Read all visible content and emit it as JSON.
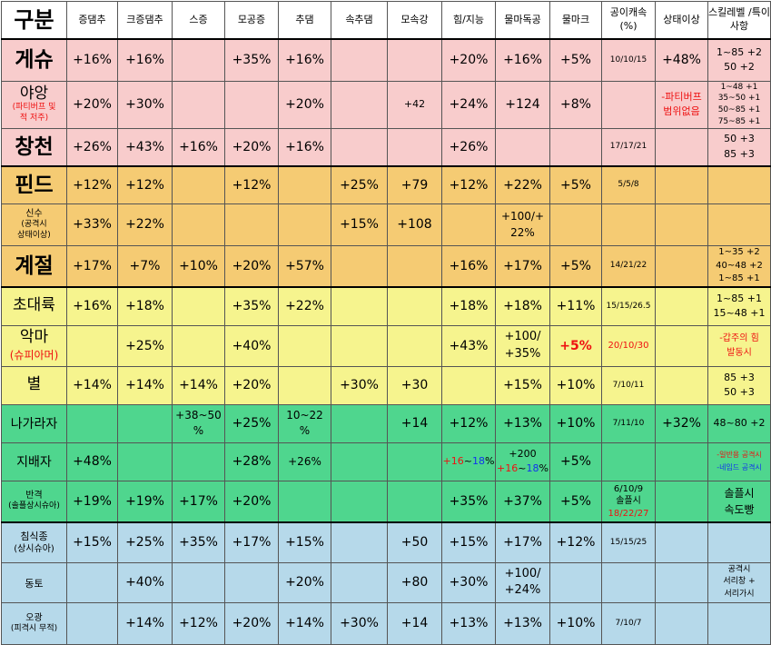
{
  "headers": [
    "구분",
    "증댐추",
    "크증댐추",
    "스증",
    "모공증",
    "추댐",
    "속추댐",
    "모속강",
    "힘/지능",
    "물마독공",
    "물마크",
    "공이캐속 (%)",
    "상태이상",
    "스킬레벨 /특이사항"
  ],
  "rows": {
    "geshu": {
      "name": "게슈",
      "c": [
        "+16%",
        "+16%",
        "",
        "+35%",
        "+16%",
        "",
        "",
        "+20%",
        "+16%",
        "+5%",
        "10/10/15",
        "+48%"
      ],
      "skill": [
        "1~85 +2",
        "50 +2"
      ]
    },
    "yayang": {
      "name": "야앙",
      "sub": [
        "(파티버프 및",
        "적 저주)"
      ],
      "c": [
        "+20%",
        "+30%",
        "",
        "",
        "+20%",
        "",
        "+42",
        "+24%",
        "+124",
        "+8%",
        "",
        ""
      ],
      "status": [
        "-파티버프",
        "범위없음"
      ],
      "skill": [
        "1~48 +1",
        "35~50 +1",
        "50~85 +1",
        "75~85 +1"
      ]
    },
    "changcheon": {
      "name": "창천",
      "c": [
        "+26%",
        "+43%",
        "+16%",
        "+20%",
        "+16%",
        "",
        "",
        "+26%",
        "",
        "",
        "17/17/21",
        ""
      ],
      "skill": [
        "50 +3",
        "85 +3"
      ]
    },
    "pind": {
      "name": "핀드",
      "c": [
        "+12%",
        "+12%",
        "",
        "+12%",
        "",
        "+25%",
        "+79",
        "+12%",
        "+22%",
        "+5%",
        "5/5/8",
        ""
      ],
      "skill": []
    },
    "sinsu": {
      "name": "신수",
      "sub": [
        "(공격시",
        "상태이상)"
      ],
      "c": [
        "+33%",
        "+22%",
        "",
        "",
        "",
        "+15%",
        "+108",
        "",
        "",
        "",
        "",
        ""
      ],
      "water": [
        "+100/+",
        "22%"
      ],
      "skill": []
    },
    "gyejeol": {
      "name": "계절",
      "c": [
        "+17%",
        "+7%",
        "+10%",
        "+20%",
        "+57%",
        "",
        "",
        "+16%",
        "+17%",
        "+5%",
        "14/21/22",
        ""
      ],
      "skill": [
        "1~35 +2",
        "40~48 +2",
        "1~85 +1"
      ]
    },
    "chodaeryuk": {
      "name": "초대륙",
      "c": [
        "+16%",
        "+18%",
        "",
        "+35%",
        "+22%",
        "",
        "",
        "+18%",
        "+18%",
        "+11%",
        "15/15/26.5",
        ""
      ],
      "skill": [
        "1~85 +1",
        "15~48 +1"
      ]
    },
    "akma": {
      "name": "악마",
      "sub": [
        "(슈피아머)"
      ],
      "c": [
        "",
        "+25%",
        "",
        "+40%",
        "",
        "",
        "",
        "+43%",
        "",
        "+5%",
        "20/10/30",
        ""
      ],
      "water": [
        "+100/",
        "+35%"
      ],
      "skill": [
        "-갑주의 힘",
        "발동시"
      ]
    },
    "byeol": {
      "name": "별",
      "c": [
        "+14%",
        "+14%",
        "+14%",
        "+20%",
        "",
        "+30%",
        "+30",
        "",
        "+15%",
        "+10%",
        "7/10/11",
        ""
      ],
      "skill": [
        "85 +3",
        "50 +3"
      ]
    },
    "nagarajja": {
      "name": "나가라자",
      "c": [
        "",
        "",
        "",
        "+25%",
        "",
        "",
        "+14",
        "+12%",
        "+13%",
        "+10%",
        "7/11/10",
        "+32%"
      ],
      "sjeung": [
        "+38~50",
        "%"
      ],
      "chudam": [
        "10~22",
        "%"
      ],
      "skill": [
        "48~80 +2"
      ]
    },
    "jibaeja": {
      "name": "지배자",
      "c": [
        "+48%",
        "",
        "",
        "+28%",
        "+26%",
        "",
        "",
        "",
        "",
        "+5%",
        "",
        ""
      ],
      "power": {
        "a": "+16",
        "tilde": "~",
        "b": "18",
        "pct": "%"
      },
      "water": {
        "top": "+200",
        "a": "+16",
        "tilde": "~",
        "b": "18",
        "pct": "%"
      },
      "skill": [
        "-일반용 공격시",
        "-네임드 공격시"
      ]
    },
    "bangyeok": {
      "name": "반격",
      "sub": [
        "(솔플상시슈아)"
      ],
      "c": [
        "+19%",
        "+19%",
        "+17%",
        "+20%",
        "",
        "",
        "",
        "+35%",
        "+37%",
        "+5%",
        "",
        ""
      ],
      "gong": [
        "6/10/9",
        "솔플시",
        "18/22/27"
      ],
      "skill": [
        "솔플시",
        "속도빵"
      ]
    },
    "chimsikjong": {
      "name": "침식종",
      "sub": [
        "(상시슈아)"
      ],
      "c": [
        "+15%",
        "+25%",
        "+35%",
        "+17%",
        "+15%",
        "",
        "+50",
        "+15%",
        "+17%",
        "+12%",
        "15/15/25",
        ""
      ],
      "skill": []
    },
    "dongto": {
      "name": "동토",
      "c": [
        "",
        "+40%",
        "",
        "",
        "+20%",
        "",
        "+80",
        "+30%",
        "",
        "",
        "",
        ""
      ],
      "water": [
        "+100/",
        "+24%"
      ],
      "skill": [
        "공격시",
        "서리창 +",
        "서리가시"
      ]
    },
    "ogwang": {
      "name": "오광",
      "sub": [
        "(피격시 무적)"
      ],
      "c": [
        "",
        "+14%",
        "+12%",
        "+20%",
        "+14%",
        "+30%",
        "+14",
        "+13%",
        "+13%",
        "+10%",
        "7/10/7",
        ""
      ],
      "skill": []
    }
  }
}
